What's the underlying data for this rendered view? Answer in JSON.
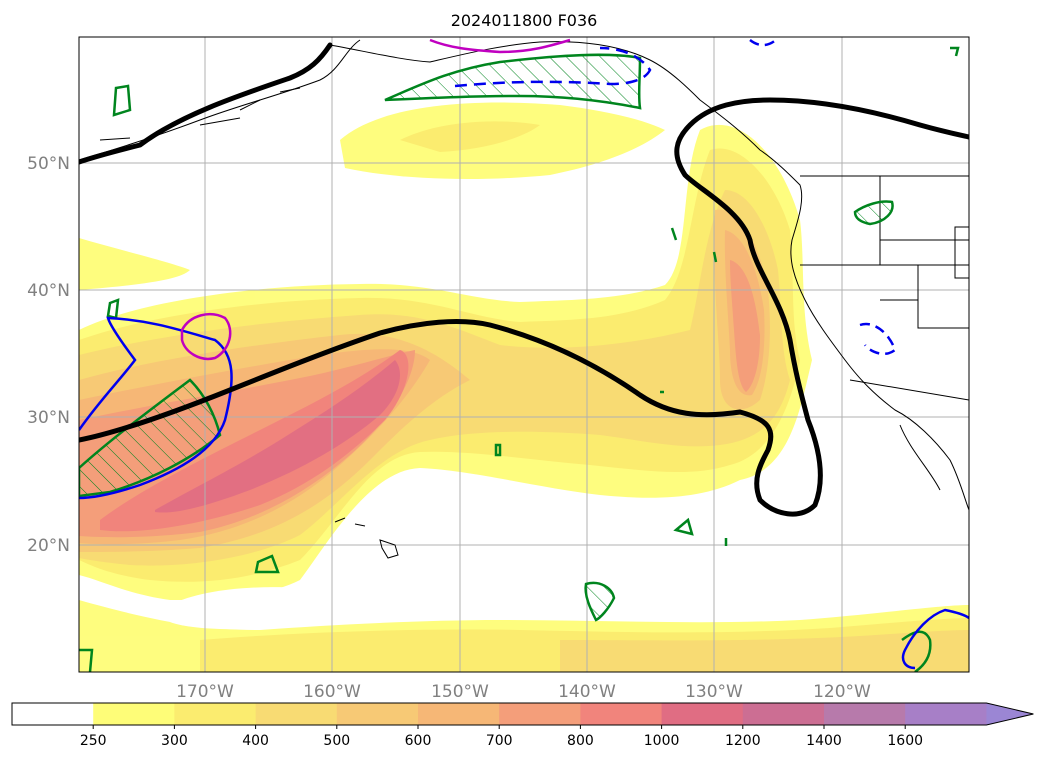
{
  "title": "2024011800 F036",
  "latitude_labels": [
    "50°N",
    "40°N",
    "30°N",
    "20°N"
  ],
  "longitude_labels": [
    "170°W",
    "160°W",
    "150°W",
    "140°W",
    "130°W",
    "120°W"
  ],
  "colorbar": {
    "ticks": [
      "250",
      "300",
      "400",
      "500",
      "600",
      "700",
      "800",
      "1000",
      "1200",
      "1400",
      "1600"
    ],
    "colors": [
      "#ffffff",
      "#fefd78",
      "#fbec6f",
      "#f8db73",
      "#f7c975",
      "#f6b776",
      "#f49e7a",
      "#f1847c",
      "#e06d83",
      "#cc6e93",
      "#b77aab",
      "#a77fc7",
      "#9b86d4"
    ],
    "extend": "max"
  },
  "map": {
    "projection": "equirectangular",
    "extent_lon": [
      -180,
      -110
    ],
    "extent_lat": [
      10,
      60
    ],
    "gridlines": true,
    "contour_colors": {
      "black": "#000000",
      "green": "#00851e",
      "blue": "#0000ee",
      "magenta": "#c000c0"
    }
  }
}
